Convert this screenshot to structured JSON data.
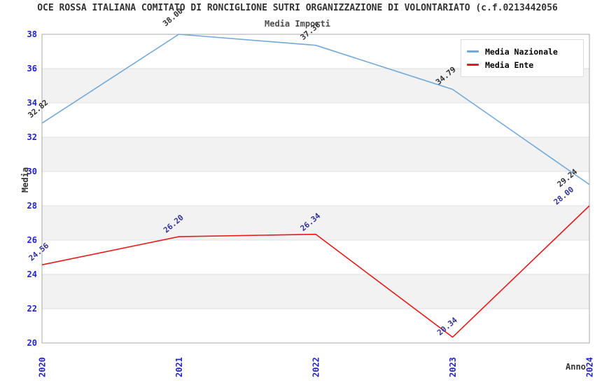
{
  "title": "OCE ROSSA ITALIANA COMITATO DI RONCIGLIONE SUTRI ORGANIZZAZIONE DI VOLONTARIATO (c.f.0213442056",
  "subtitle": "Media Importi",
  "axes": {
    "x_label": "Anno",
    "y_label": "Media"
  },
  "legend": {
    "items": [
      {
        "label": "Media Nazionale",
        "color": "#74a9d8"
      },
      {
        "label": "Media Ente",
        "color": "#e61a1a"
      }
    ]
  },
  "chart_data": {
    "type": "line",
    "title": "Media Importi",
    "xlabel": "Anno",
    "ylabel": "Media",
    "x": [
      "2020",
      "2021",
      "2022",
      "2023",
      "2024"
    ],
    "series": [
      {
        "name": "Media Nazionale",
        "color": "#74a9d8",
        "label_color": "#333333",
        "values": [
          32.82,
          38.0,
          37.36,
          34.79,
          29.24
        ]
      },
      {
        "name": "Media Ente",
        "color": "#e61a1a",
        "label_color": "#333399",
        "values": [
          24.56,
          26.2,
          26.34,
          20.34,
          28.0
        ]
      }
    ],
    "ylim": [
      20,
      38
    ],
    "ytick_step": 2,
    "grid": true,
    "legend_position": "upper right",
    "colors": {
      "tick_label": "#2222cc",
      "band_fill": "#f2f2f2",
      "gridline": "#e0e0e0",
      "frame": "#a8a8a8"
    }
  }
}
